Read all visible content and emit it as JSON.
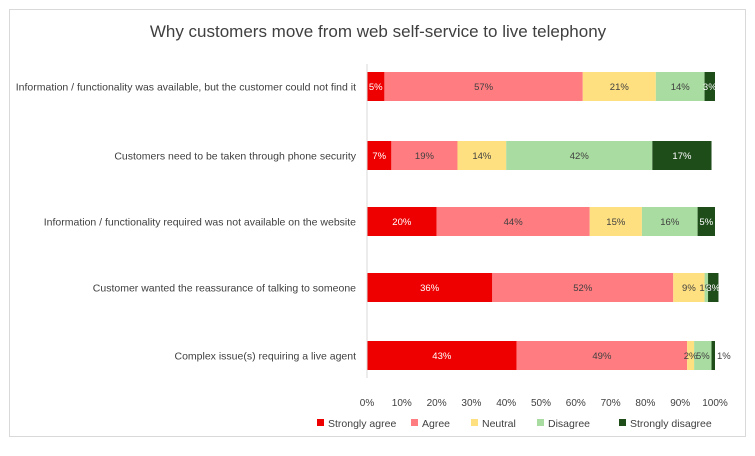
{
  "chart_data": {
    "type": "bar",
    "orientation": "horizontal",
    "stacked": true,
    "title": "Why customers move from web self-service to live telephony",
    "xlabel": "",
    "ylabel": "",
    "xlim": [
      0,
      100
    ],
    "x_ticks": [
      "0%",
      "10%",
      "20%",
      "30%",
      "40%",
      "50%",
      "60%",
      "70%",
      "80%",
      "90%",
      "100%"
    ],
    "grid": false,
    "legend_position": "bottom",
    "categories": [
      "Information / functionality was available, but the customer could not find it",
      "Customers need to be taken through phone security",
      "Information / functionality required was not available on the website",
      "Customer wanted the reassurance of talking to someone",
      "Complex issue(s) requiring a live agent"
    ],
    "series": [
      {
        "name": "Strongly agree",
        "color": "#ee0000",
        "label_color": "#ffffff",
        "values": [
          5,
          7,
          20,
          36,
          43
        ],
        "labels": [
          "5%",
          "7%",
          "20%",
          "36%",
          "43%"
        ]
      },
      {
        "name": "Agree",
        "color": "#ff7c80",
        "label_color": "#404040",
        "values": [
          57,
          19,
          44,
          52,
          49
        ],
        "labels": [
          "57%",
          "19%",
          "44%",
          "52%",
          "49%"
        ]
      },
      {
        "name": "Neutral",
        "color": "#ffe080",
        "label_color": "#404040",
        "values": [
          21,
          14,
          15,
          9,
          2
        ],
        "labels": [
          "21%",
          "14%",
          "15%",
          "9%",
          "2%"
        ]
      },
      {
        "name": "Disagree",
        "color": "#a9dca0",
        "label_color": "#404040",
        "values": [
          14,
          42,
          16,
          1,
          5
        ],
        "labels": [
          "14%",
          "42%",
          "16%",
          "1%",
          "5%"
        ]
      },
      {
        "name": "Strongly disagree",
        "color": "#1e4d1a",
        "label_color": "#ffffff",
        "values": [
          3,
          17,
          5,
          3,
          1
        ],
        "labels": [
          "3%",
          "17%",
          "5%",
          "3%",
          "1%"
        ]
      }
    ]
  }
}
